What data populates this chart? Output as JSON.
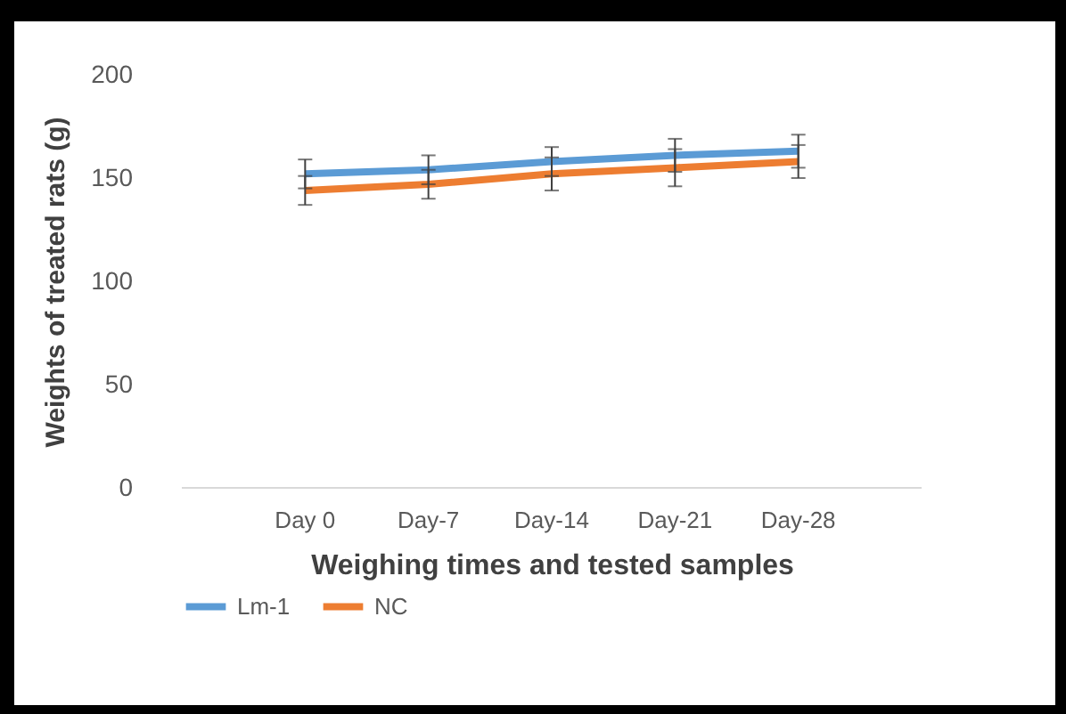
{
  "chart_data": {
    "type": "line",
    "xlabel": "Weighing times and tested samples",
    "ylabel": "Weights of treated rats (g)",
    "categories": [
      "Day 0",
      "Day-7",
      "Day-14",
      "Day-21",
      "Day-28"
    ],
    "series": [
      {
        "name": "Lm-1",
        "color": "#5b9bd5",
        "values": [
          152,
          154,
          158,
          161,
          163
        ],
        "errors": [
          7,
          7,
          7,
          8,
          8
        ]
      },
      {
        "name": "NC",
        "color": "#ed7d31",
        "values": [
          144,
          147,
          152,
          155,
          158
        ],
        "errors": [
          7,
          7,
          8,
          9,
          8
        ]
      }
    ],
    "ylim": [
      0,
      200
    ],
    "yticks": [
      0,
      50,
      100,
      150,
      200
    ],
    "grid": false,
    "legend": "bottom",
    "marker": "none",
    "line_style": "solid"
  }
}
